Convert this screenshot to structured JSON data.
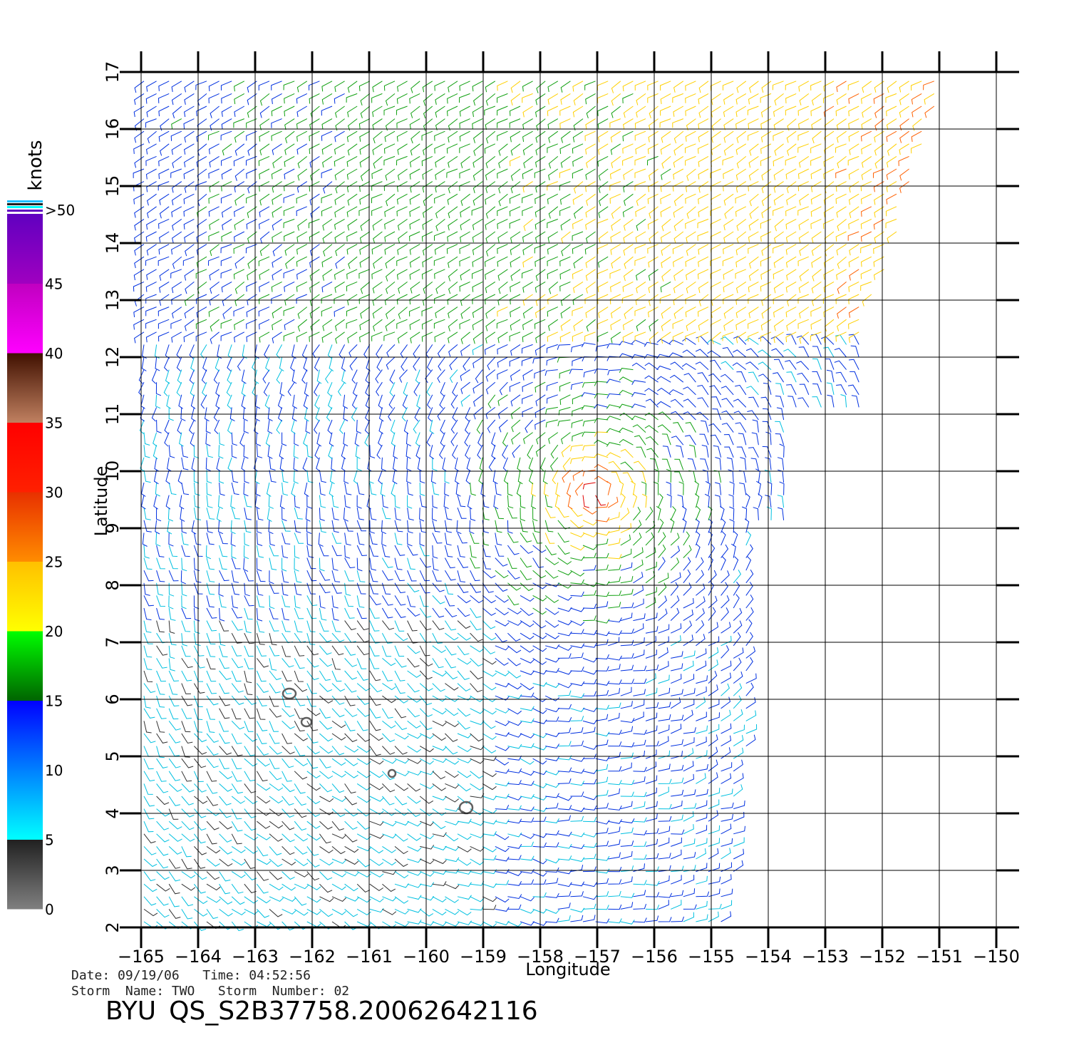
{
  "map": {
    "xlabel": "Longitude",
    "ylabel": "Latitude",
    "lon_ticks": [
      -165,
      -164,
      -163,
      -162,
      -161,
      -160,
      -159,
      -158,
      -157,
      -156,
      -155,
      -154,
      -153,
      -152,
      -151,
      -150
    ],
    "lat_ticks": [
      2,
      3,
      4,
      5,
      6,
      7,
      8,
      9,
      10,
      11,
      12,
      13,
      14,
      15,
      16,
      17
    ],
    "lon_range": [
      -165,
      -150
    ],
    "lat_range": [
      2,
      17
    ],
    "storm_center": {
      "lon": -157.0,
      "lat": 9.6
    },
    "swath_edge_lon": [
      -150.9,
      -152.3,
      -153.6,
      -154.2,
      -154.7
    ],
    "islands": [
      {
        "name": "island-a",
        "lon": -162.4,
        "lat": 6.1
      },
      {
        "name": "island-b",
        "lon": -162.1,
        "lat": 5.6
      },
      {
        "name": "island-c",
        "lon": -160.6,
        "lat": 4.7
      },
      {
        "name": "island-d",
        "lon": -159.3,
        "lat": 4.1
      }
    ]
  },
  "colorbar": {
    "title": "knots",
    "labels": [
      "0",
      "5",
      "10",
      "15",
      "20",
      "25",
      "30",
      "35",
      "40",
      "45",
      ">50"
    ],
    "bands": [
      {
        "label": "0-5",
        "colors": [
          "#808080",
          "#202020"
        ]
      },
      {
        "label": "5-10",
        "colors": [
          "#00ffff",
          "#0080ff"
        ]
      },
      {
        "label": "10-15",
        "colors": [
          "#0080ff",
          "#0000ff"
        ]
      },
      {
        "label": "15-20",
        "colors": [
          "#006400",
          "#00ff00"
        ]
      },
      {
        "label": "20-25",
        "colors": [
          "#ffff00",
          "#ffc000"
        ]
      },
      {
        "label": "25-30",
        "colors": [
          "#ff8c00",
          "#e83000"
        ]
      },
      {
        "label": "30-35",
        "colors": [
          "#ff2000",
          "#ff0000"
        ]
      },
      {
        "label": "35-40",
        "colors": [
          "#c08060",
          "#401000"
        ]
      },
      {
        "label": "40-45",
        "colors": [
          "#ff00ff",
          "#c000c0"
        ]
      },
      {
        "label": "45-50",
        "colors": [
          "#a000c0",
          "#6000c0"
        ]
      }
    ]
  },
  "info": {
    "date_line": "Date: 09/19/06   Time: 04:52:56",
    "storm_line": "Storm  Name: TWO   Storm  Number: 02",
    "title_prefix": "BYU",
    "title_file": "QS_S2B37758.20062642116"
  }
}
